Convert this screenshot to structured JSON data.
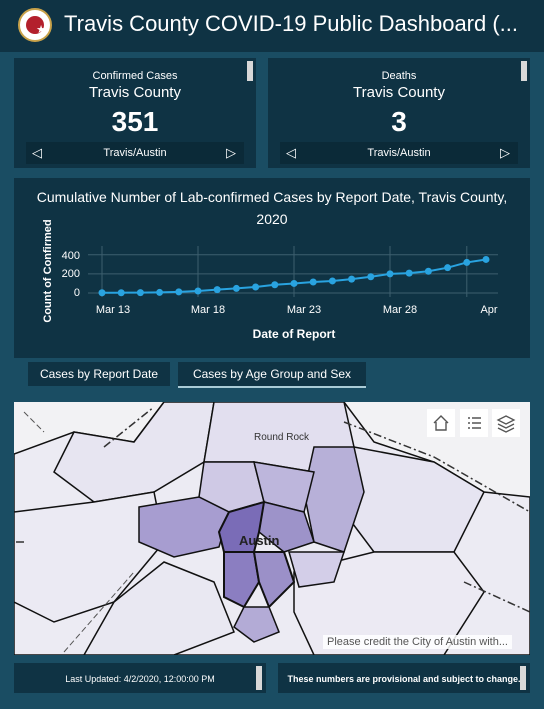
{
  "header": {
    "title": "Travis County COVID-19 Public Dashboard (..."
  },
  "cards": [
    {
      "label": "Confirmed Cases",
      "area": "Travis County",
      "value": "351",
      "nav_label": "Travis/Austin"
    },
    {
      "label": "Deaths",
      "area": "Travis County",
      "value": "3",
      "nav_label": "Travis/Austin"
    }
  ],
  "chart": {
    "title_line1": "Cumulative Number of Lab-confirmed Cases by Report Date, Travis County,",
    "title_line2": "2020",
    "y_ticks": [
      "400",
      "200",
      "0"
    ],
    "x_ticks": [
      "Mar 13",
      "Mar 18",
      "Mar 23",
      "Mar 28",
      "Apr"
    ]
  },
  "chart_data": {
    "type": "line",
    "title": "Cumulative Number of Lab-confirmed Cases by Report Date, Travis County, 2020",
    "xlabel": "Date of Report",
    "ylabel": "Count of Confirmed",
    "ylim": [
      0,
      450
    ],
    "grid": true,
    "x": [
      "Mar 13",
      "Mar 14",
      "Mar 15",
      "Mar 16",
      "Mar 17",
      "Mar 18",
      "Mar 19",
      "Mar 20",
      "Mar 21",
      "Mar 22",
      "Mar 23",
      "Mar 24",
      "Mar 25",
      "Mar 26",
      "Mar 27",
      "Mar 28",
      "Mar 29",
      "Mar 30",
      "Mar 31",
      "Apr 1",
      "Apr 2"
    ],
    "values": [
      3,
      3,
      4,
      6,
      12,
      21,
      35,
      48,
      63,
      86,
      100,
      115,
      126,
      145,
      170,
      200,
      208,
      228,
      265,
      320,
      351
    ],
    "color": "#29a3e0"
  },
  "tabs": [
    {
      "label": "Cases by Report Date"
    },
    {
      "label": "Cases by Age Group and Sex"
    }
  ],
  "map": {
    "labels": {
      "round_rock": "Round Rock",
      "austin": "Austin"
    },
    "credit": "Please credit the City of Austin with...",
    "controls": [
      "home-icon",
      "legend-icon",
      "layers-icon"
    ]
  },
  "footer": {
    "updated": "Last Updated: 4/2/2020, 12:00:00 PM",
    "disclaimer": "These numbers are provisional and subject to change."
  },
  "colors": {
    "panel": "#0f3344",
    "background": "#1a4d63",
    "line": "#29a3e0"
  }
}
